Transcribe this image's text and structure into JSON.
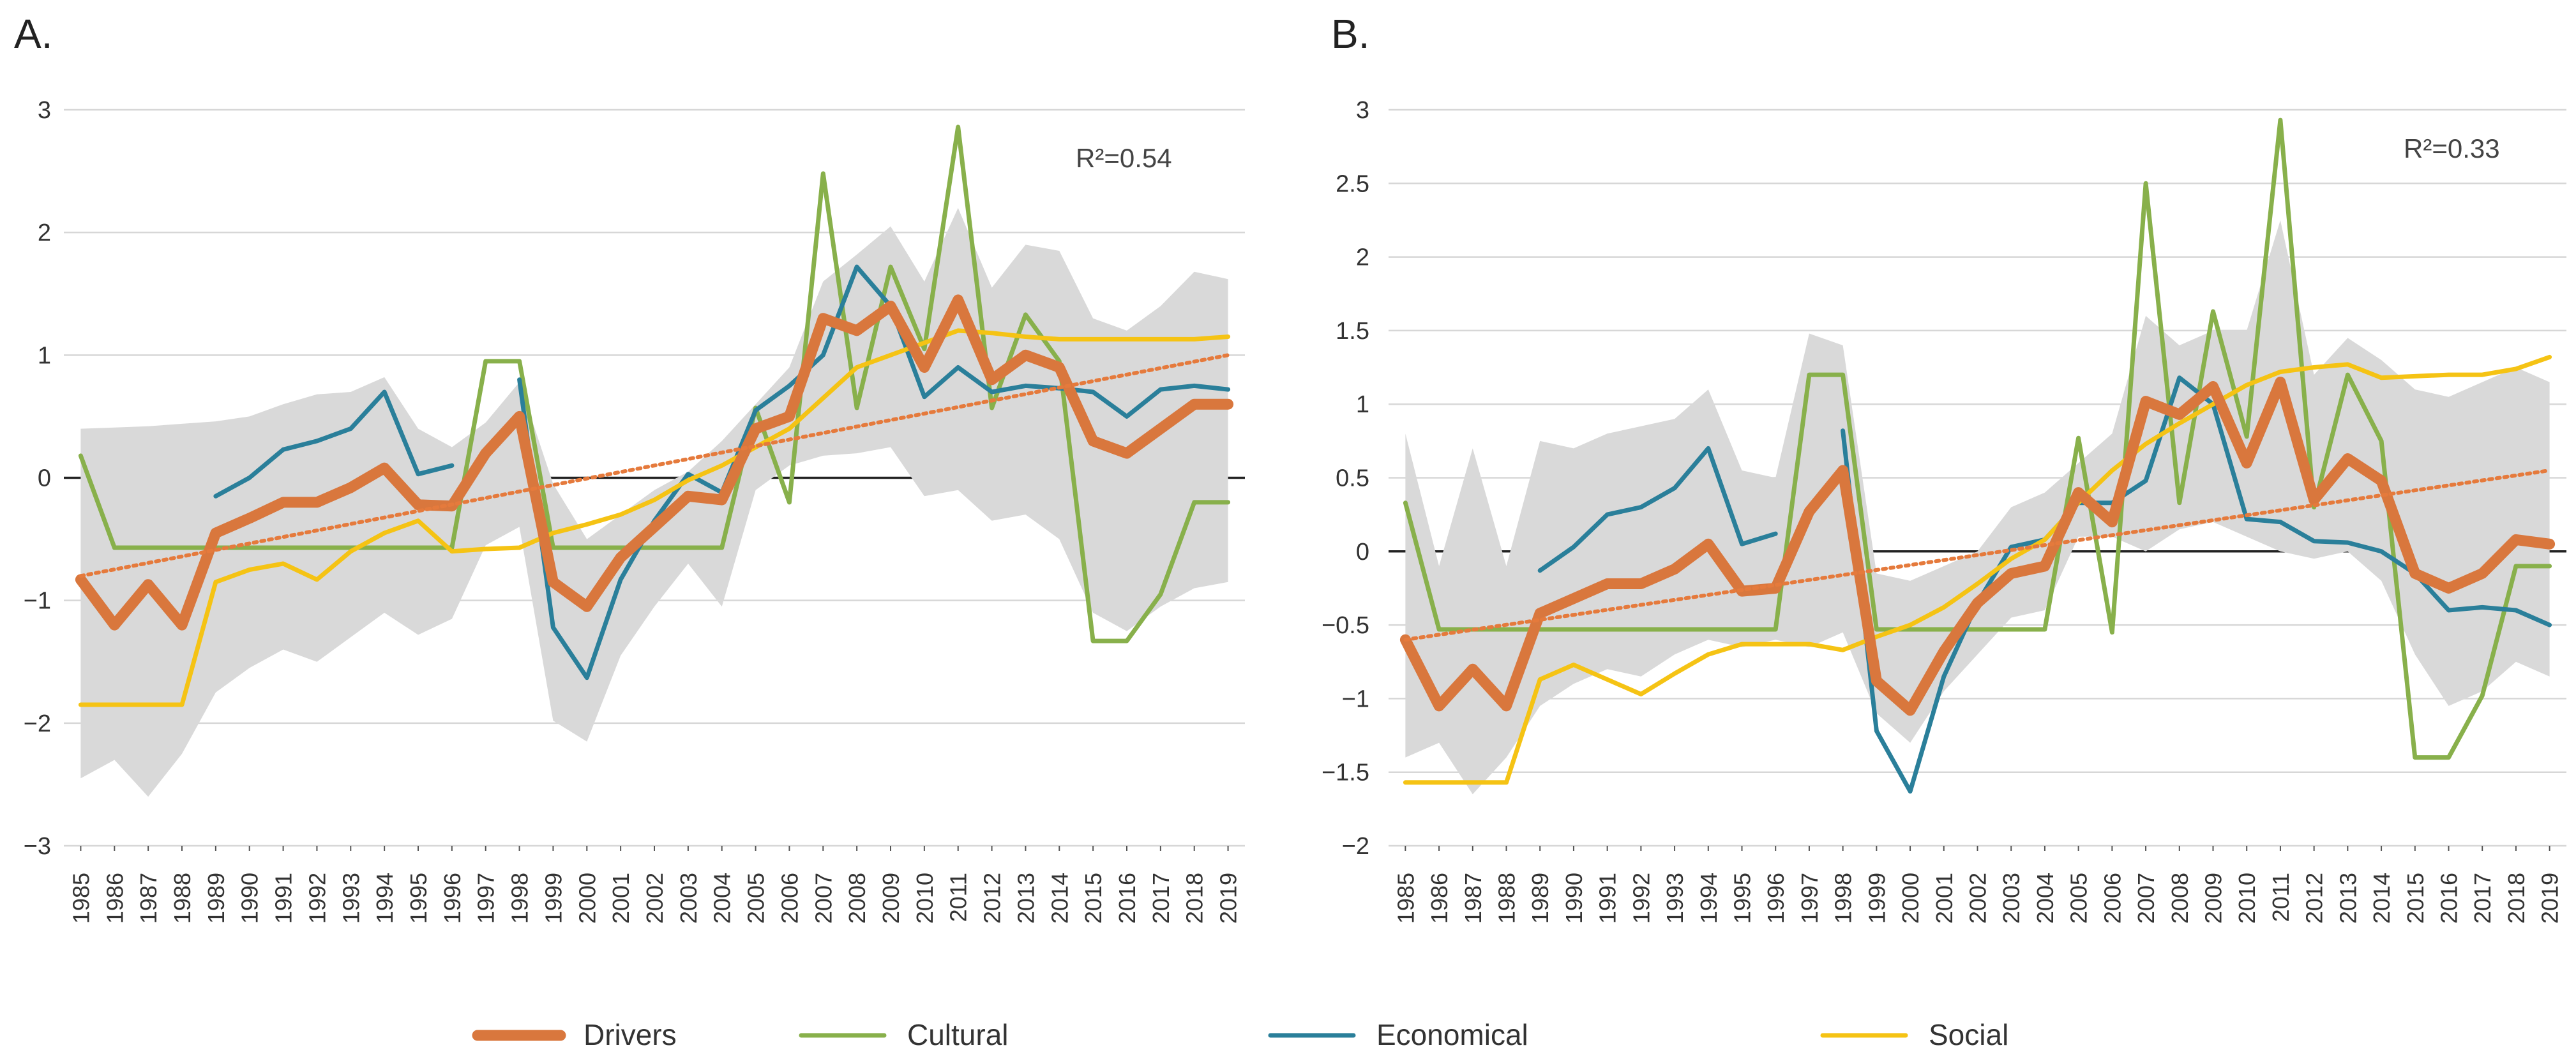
{
  "chart_data": [
    {
      "type": "line",
      "panel_label": "A.",
      "annotation": "R²=0.54",
      "r2_value": "0.54",
      "x": [
        "1985",
        "1986",
        "1987",
        "1988",
        "1989",
        "1990",
        "1991",
        "1992",
        "1993",
        "1994",
        "1995",
        "1996",
        "1997",
        "1998",
        "1999",
        "2000",
        "2001",
        "2002",
        "2003",
        "2004",
        "2005",
        "2006",
        "2007",
        "2008",
        "2009",
        "2010",
        "2011",
        "2012",
        "2013",
        "2014",
        "2015",
        "2016",
        "2017",
        "2018",
        "2019"
      ],
      "ylim": [
        -3,
        3
      ],
      "yticks": [
        -3,
        -2,
        -1,
        0,
        1,
        2,
        3
      ],
      "ytick_labels": [
        "−3",
        "−2",
        "−1",
        "0",
        "1",
        "2",
        "3"
      ],
      "band": {
        "upper": [
          0.4,
          0.41,
          0.42,
          0.44,
          0.46,
          0.5,
          0.6,
          0.68,
          0.7,
          0.82,
          0.4,
          0.25,
          0.45,
          0.78,
          -0.05,
          -0.5,
          -0.3,
          -0.1,
          0.05,
          0.3,
          0.6,
          0.9,
          1.6,
          1.82,
          2.05,
          1.6,
          2.2,
          1.55,
          1.9,
          1.85,
          1.3,
          1.2,
          1.4,
          1.68,
          1.62
        ],
        "lower": [
          -2.45,
          -2.3,
          -2.6,
          -2.25,
          -1.75,
          -1.55,
          -1.4,
          -1.5,
          -1.3,
          -1.1,
          -1.28,
          -1.15,
          -0.55,
          -0.4,
          -1.98,
          -2.15,
          -1.45,
          -1.05,
          -0.7,
          -1.05,
          -0.1,
          0.1,
          0.18,
          0.2,
          0.25,
          -0.15,
          -0.1,
          -0.35,
          -0.3,
          -0.5,
          -1.1,
          -1.25,
          -1.05,
          -0.9,
          -0.85
        ]
      },
      "series": [
        {
          "name": "Drivers",
          "color": "#D9773D",
          "values": [
            -0.83,
            -1.2,
            -0.87,
            -1.2,
            -0.45,
            -0.33,
            -0.2,
            -0.2,
            -0.08,
            0.08,
            -0.22,
            -0.23,
            0.2,
            0.5,
            -0.85,
            -1.05,
            -0.65,
            -0.4,
            -0.15,
            -0.18,
            0.4,
            0.5,
            1.3,
            1.2,
            1.4,
            0.9,
            1.45,
            0.8,
            1.0,
            0.9,
            0.3,
            0.2,
            0.4,
            0.6,
            0.6
          ]
        },
        {
          "name": "Cultural",
          "color": "#88B04B",
          "values": [
            0.18,
            -0.57,
            -0.57,
            -0.57,
            -0.57,
            -0.57,
            -0.57,
            -0.57,
            -0.57,
            -0.57,
            -0.57,
            -0.57,
            0.95,
            0.95,
            -0.57,
            -0.57,
            -0.57,
            -0.57,
            -0.57,
            -0.57,
            0.57,
            -0.2,
            2.48,
            0.57,
            1.72,
            1.05,
            2.86,
            0.57,
            1.33,
            0.95,
            -1.33,
            -1.33,
            -0.95,
            -0.2,
            -0.2
          ]
        },
        {
          "name": "Economical",
          "color": "#2A7F9A",
          "values": [
            null,
            null,
            null,
            null,
            -0.15,
            0.0,
            0.23,
            0.3,
            0.4,
            0.7,
            0.03,
            0.1,
            null,
            0.8,
            -1.22,
            -1.63,
            -0.83,
            -0.35,
            0.03,
            -0.12,
            0.55,
            0.75,
            1.0,
            1.72,
            1.4,
            0.66,
            0.9,
            0.7,
            0.75,
            0.73,
            0.7,
            0.5,
            0.72,
            0.75,
            0.72
          ]
        },
        {
          "name": "Social",
          "color": "#F5C314",
          "values": [
            -1.85,
            -1.85,
            -1.85,
            -1.85,
            -0.85,
            -0.75,
            -0.7,
            -0.83,
            -0.6,
            -0.45,
            -0.35,
            -0.6,
            -0.58,
            -0.57,
            -0.45,
            -0.38,
            -0.3,
            -0.18,
            -0.02,
            0.1,
            0.25,
            0.4,
            0.65,
            0.9,
            1.0,
            1.1,
            1.2,
            1.18,
            1.15,
            1.13,
            1.13,
            1.13,
            1.13,
            1.13,
            1.15
          ]
        }
      ],
      "trend": {
        "name": "Drivers trend",
        "color": "#E57A3C",
        "start": -0.8,
        "end": 1.0
      }
    },
    {
      "type": "line",
      "panel_label": "B.",
      "annotation": "R²=0.33",
      "r2_value": "0.33",
      "x": [
        "1985",
        "1986",
        "1987",
        "1988",
        "1989",
        "1990",
        "1991",
        "1992",
        "1993",
        "1994",
        "1995",
        "1996",
        "1997",
        "1998",
        "1999",
        "2000",
        "2001",
        "2002",
        "2003",
        "2004",
        "2005",
        "2006",
        "2007",
        "2008",
        "2009",
        "2010",
        "2011",
        "2012",
        "2013",
        "2014",
        "2015",
        "2016",
        "2017",
        "2018",
        "2019"
      ],
      "ylim": [
        -2,
        3
      ],
      "yticks": [
        -2,
        -1.5,
        -1,
        -0.5,
        0,
        0.5,
        1,
        1.5,
        2,
        2.5,
        3
      ],
      "ytick_labels": [
        "−2",
        "−1.5",
        "−1",
        "−0.5",
        "0",
        "0.5",
        "1",
        "1.5",
        "2",
        "2.5",
        "3"
      ],
      "band": {
        "upper": [
          0.8,
          -0.1,
          0.7,
          -0.1,
          0.75,
          0.7,
          0.8,
          0.85,
          0.9,
          1.1,
          0.55,
          0.5,
          1.48,
          1.4,
          -0.15,
          -0.2,
          -0.1,
          0.0,
          0.3,
          0.4,
          0.6,
          0.8,
          1.6,
          1.4,
          1.5,
          1.5,
          2.25,
          1.2,
          1.45,
          1.3,
          1.1,
          1.05,
          1.15,
          1.25,
          1.15
        ],
        "lower": [
          -1.4,
          -1.3,
          -1.65,
          -1.4,
          -1.05,
          -0.9,
          -0.8,
          -0.85,
          -0.7,
          -0.6,
          -0.65,
          -0.6,
          -0.65,
          -0.55,
          -1.1,
          -1.3,
          -0.95,
          -0.7,
          -0.45,
          -0.4,
          0.1,
          0.1,
          0.0,
          0.15,
          0.2,
          0.1,
          0.0,
          -0.05,
          0.0,
          -0.2,
          -0.7,
          -1.05,
          -0.95,
          -0.75,
          -0.85
        ]
      },
      "series": [
        {
          "name": "Drivers",
          "color": "#D9773D",
          "values": [
            -0.6,
            -1.05,
            -0.8,
            -1.05,
            -0.42,
            -0.32,
            -0.22,
            -0.22,
            -0.12,
            0.05,
            -0.27,
            -0.25,
            0.27,
            0.55,
            -0.88,
            -1.08,
            -0.68,
            -0.35,
            -0.15,
            -0.1,
            0.4,
            0.2,
            1.02,
            0.93,
            1.12,
            0.6,
            1.15,
            0.35,
            0.63,
            0.48,
            -0.15,
            -0.25,
            -0.15,
            0.08,
            0.05
          ]
        },
        {
          "name": "Cultural",
          "color": "#88B04B",
          "values": [
            0.33,
            -0.53,
            -0.53,
            -0.53,
            -0.53,
            -0.53,
            -0.53,
            -0.53,
            -0.53,
            -0.53,
            -0.53,
            -0.53,
            1.2,
            1.2,
            -0.53,
            -0.53,
            -0.53,
            -0.53,
            -0.53,
            -0.53,
            0.77,
            -0.55,
            2.5,
            0.33,
            1.63,
            0.78,
            2.93,
            0.3,
            1.2,
            0.75,
            -1.4,
            -1.4,
            -0.98,
            -0.1,
            -0.1
          ]
        },
        {
          "name": "Economical",
          "color": "#2A7F9A",
          "values": [
            null,
            null,
            null,
            null,
            -0.13,
            0.03,
            0.25,
            0.3,
            0.43,
            0.7,
            0.05,
            0.12,
            null,
            0.82,
            -1.22,
            -1.63,
            -0.85,
            -0.35,
            0.03,
            0.08,
            0.33,
            0.33,
            0.48,
            1.18,
            1.0,
            0.22,
            0.2,
            0.07,
            0.06,
            0.0,
            -0.15,
            -0.4,
            -0.38,
            -0.4,
            -0.5
          ]
        },
        {
          "name": "Social",
          "color": "#F5C314",
          "values": [
            -1.57,
            -1.57,
            -1.57,
            -1.57,
            -0.87,
            -0.77,
            -0.87,
            -0.97,
            -0.83,
            -0.7,
            -0.63,
            -0.63,
            -0.63,
            -0.67,
            -0.58,
            -0.5,
            -0.38,
            -0.22,
            -0.05,
            0.08,
            0.33,
            0.55,
            0.73,
            0.87,
            1.0,
            1.13,
            1.22,
            1.25,
            1.27,
            1.18,
            1.19,
            1.2,
            1.2,
            1.24,
            1.32
          ]
        }
      ],
      "trend": {
        "name": "Drivers trend",
        "color": "#E57A3C",
        "start": -0.6,
        "end": 0.55
      }
    }
  ],
  "legend": {
    "placement": "bottom",
    "items": [
      {
        "label": "Drivers",
        "color": "#D9773D"
      },
      {
        "label": "Cultural",
        "color": "#88B04B"
      },
      {
        "label": "Economical",
        "color": "#2A7F9A"
      },
      {
        "label": "Social",
        "color": "#F5C314"
      }
    ]
  },
  "colors": {
    "band": "#D9D9D9",
    "grid": "#D7D7D7",
    "zero_line": "#222222"
  }
}
